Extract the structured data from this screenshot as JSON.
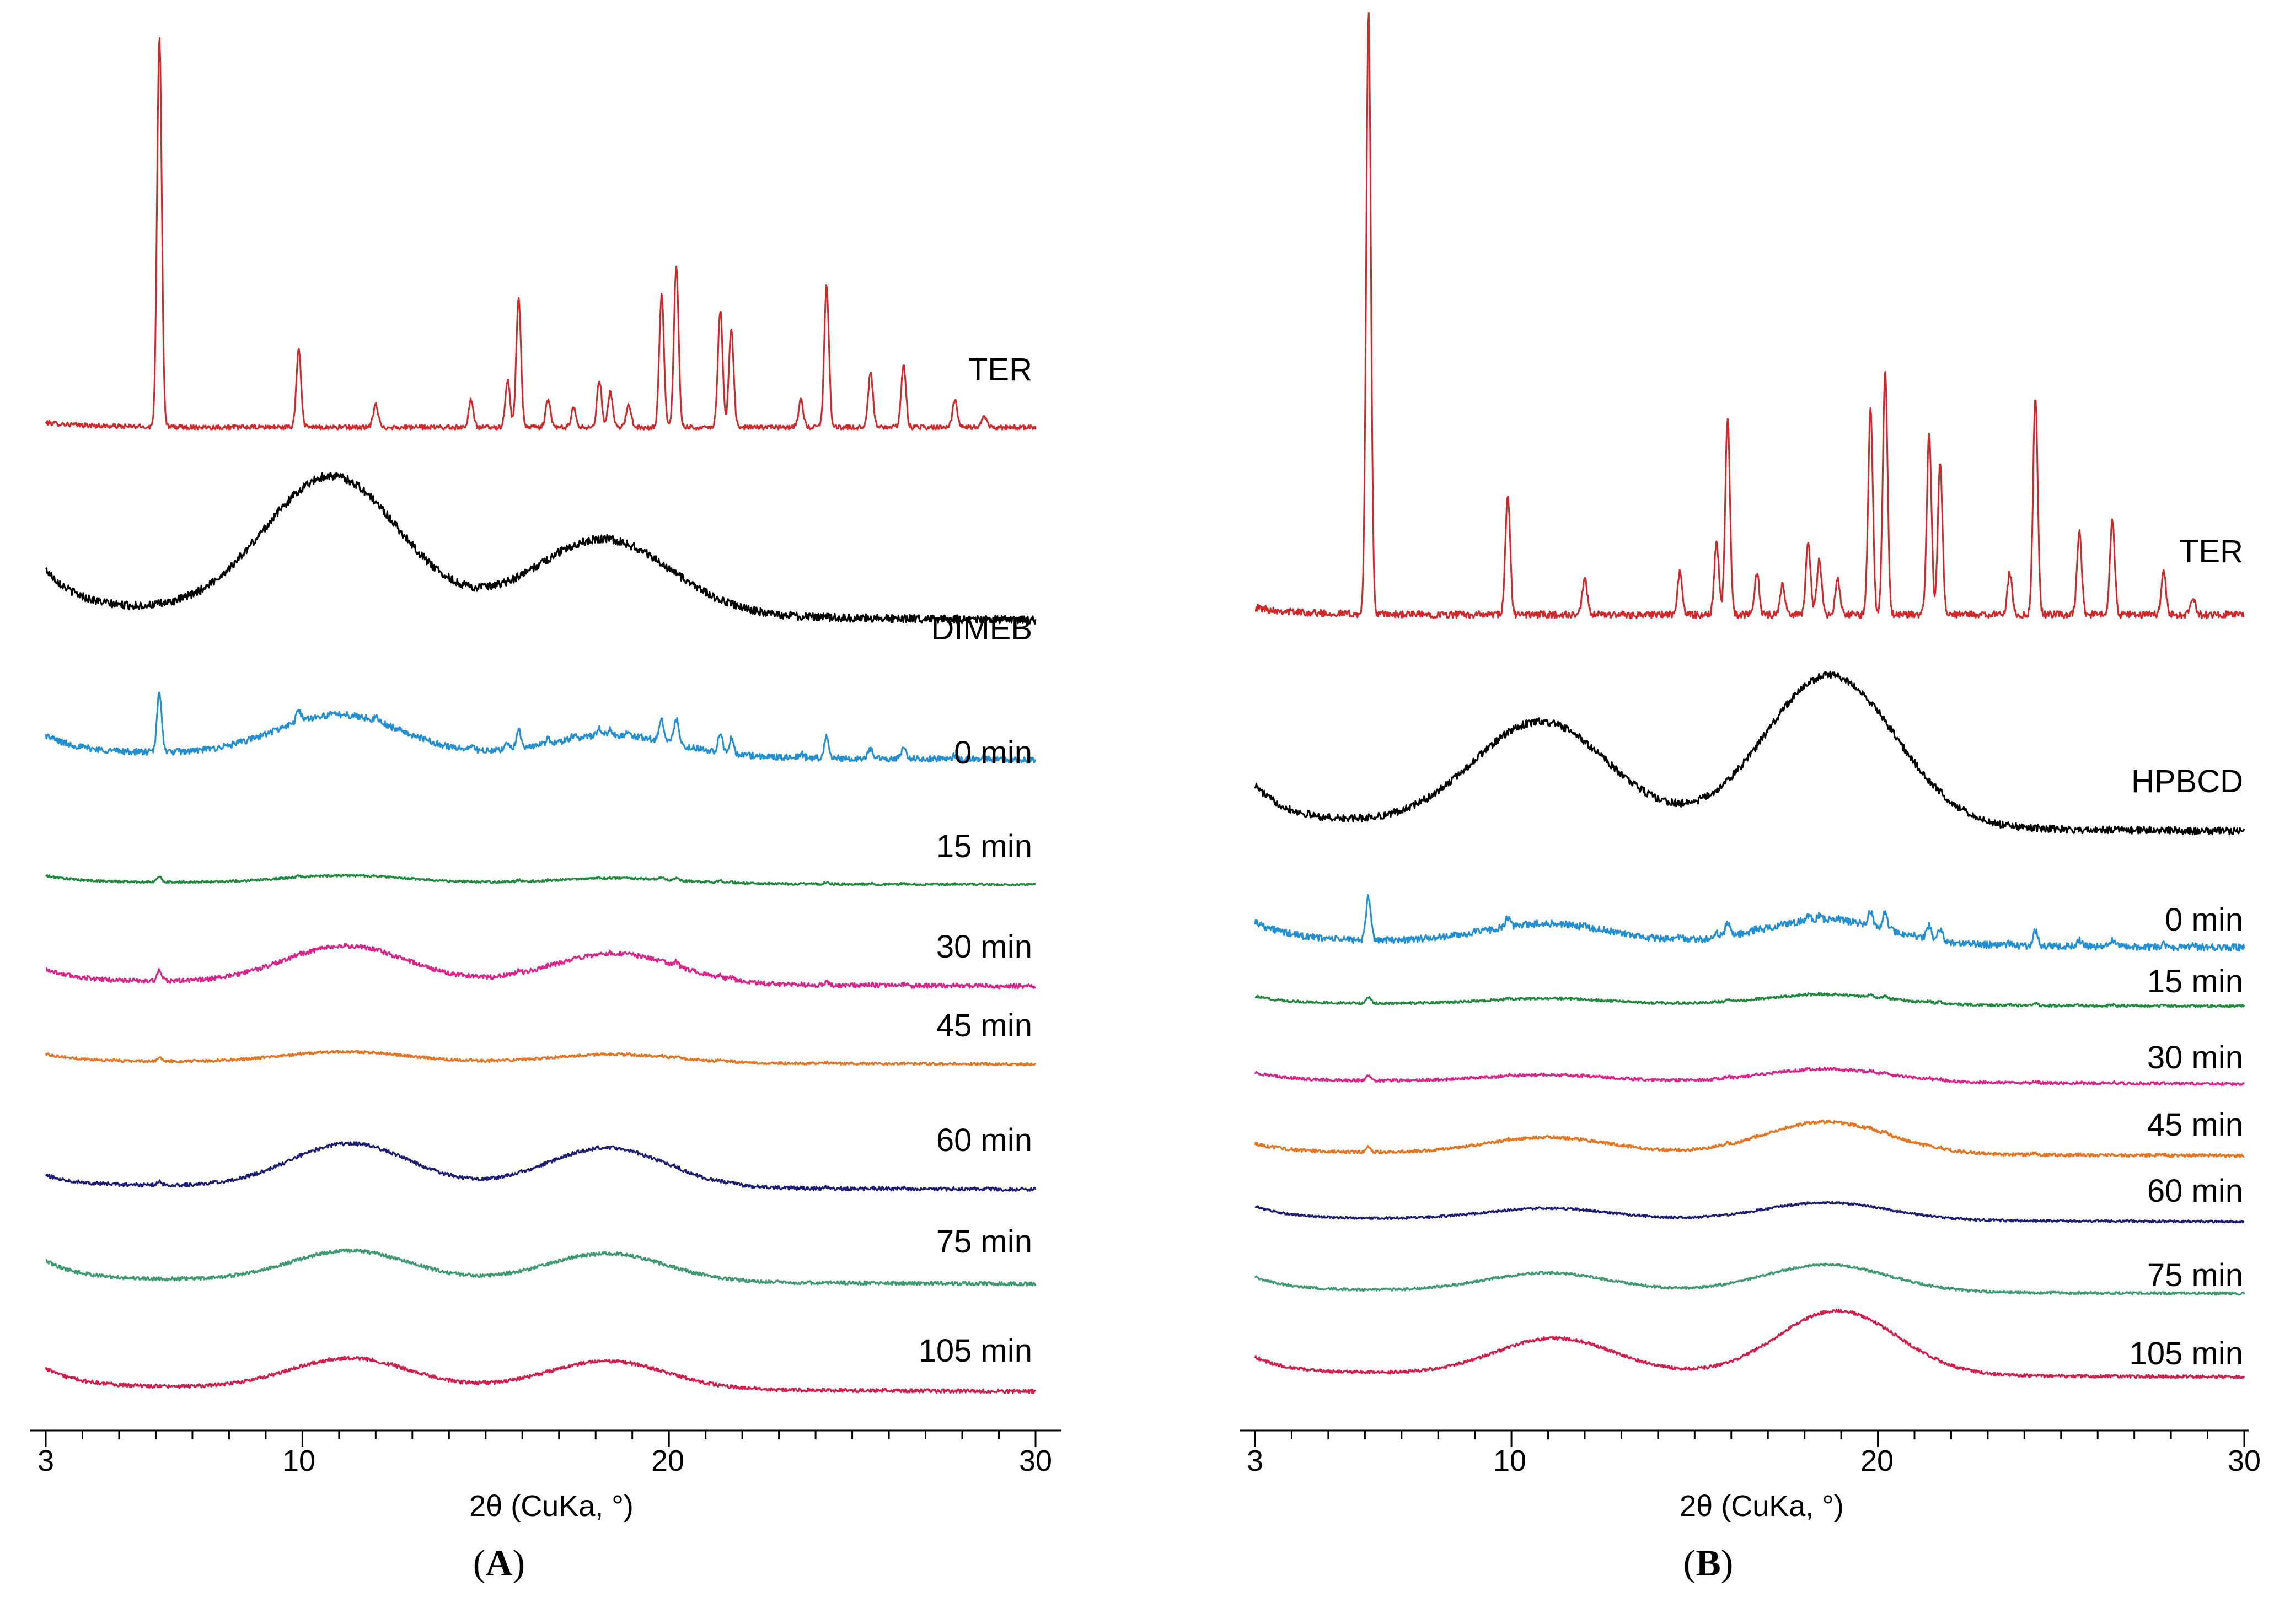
{
  "chart_data": [
    {
      "type": "line",
      "panel_label": "A",
      "xlabel": "2θ (CuKa, °)",
      "xlim": [
        3,
        30
      ],
      "xticks": [
        3,
        10,
        20,
        30
      ],
      "ylabel": "",
      "grid": false,
      "series": [
        {
          "name": "TER",
          "color": "#d62728",
          "kind": "crystalline"
        },
        {
          "name": "DIMEB",
          "color": "#000000",
          "kind": "amorphous",
          "humps": [
            {
              "center": 10.8,
              "height": 0.75,
              "width": 2.6
            },
            {
              "center": 18.2,
              "height": 0.42,
              "width": 2.6
            }
          ]
        },
        {
          "name": "0 min",
          "color": "#1f8fd6",
          "kind": "mixture",
          "crystal_fraction": 0.42,
          "humps": [
            {
              "center": 11.0,
              "height": 0.28,
              "width": 2.4
            },
            {
              "center": 18.5,
              "height": 0.15,
              "width": 2.4
            }
          ]
        },
        {
          "name": "15 min",
          "color": "#1a8c3a",
          "kind": "mixture",
          "crystal_fraction": 0.1,
          "humps": [
            {
              "center": 11.2,
              "height": 0.14,
              "width": 2.4
            },
            {
              "center": 18.6,
              "height": 0.1,
              "width": 2.4
            }
          ]
        },
        {
          "name": "30 min",
          "color": "#e0218a",
          "kind": "mixture",
          "crystal_fraction": 0.1,
          "humps": [
            {
              "center": 11.2,
              "height": 0.36,
              "width": 2.4
            },
            {
              "center": 18.5,
              "height": 0.3,
              "width": 2.4
            }
          ]
        },
        {
          "name": "45 min",
          "color": "#e8731a",
          "kind": "mixture",
          "crystal_fraction": 0.05,
          "humps": [
            {
              "center": 11.2,
              "height": 0.17,
              "width": 2.4
            },
            {
              "center": 18.5,
              "height": 0.14,
              "width": 2.4
            }
          ]
        },
        {
          "name": "60 min",
          "color": "#1c1c7a",
          "kind": "mixture",
          "crystal_fraction": 0.04,
          "humps": [
            {
              "center": 11.3,
              "height": 0.52,
              "width": 2.3
            },
            {
              "center": 18.3,
              "height": 0.48,
              "width": 2.3
            }
          ]
        },
        {
          "name": "75 min",
          "color": "#3a9a70",
          "kind": "amorphous",
          "humps": [
            {
              "center": 11.3,
              "height": 0.36,
              "width": 2.3
            },
            {
              "center": 18.3,
              "height": 0.34,
              "width": 2.3
            }
          ]
        },
        {
          "name": "105 min",
          "color": "#d81b4a",
          "kind": "amorphous",
          "humps": [
            {
              "center": 11.3,
              "height": 0.36,
              "width": 2.3
            },
            {
              "center": 18.3,
              "height": 0.34,
              "width": 2.3
            }
          ]
        }
      ]
    },
    {
      "type": "line",
      "panel_label": "B",
      "xlabel": "2θ (CuKa, °)",
      "xlim": [
        3,
        30
      ],
      "xticks": [
        3,
        10,
        20,
        30
      ],
      "ylabel": "",
      "grid": false,
      "series": [
        {
          "name": "TER",
          "color": "#d62728",
          "kind": "crystalline"
        },
        {
          "name": "HPBCD",
          "color": "#000000",
          "kind": "amorphous",
          "humps": [
            {
              "center": 10.8,
              "height": 0.62,
              "width": 2.6
            },
            {
              "center": 18.7,
              "height": 0.92,
              "width": 2.5
            }
          ]
        },
        {
          "name": "0 min",
          "color": "#1f8fd6",
          "kind": "mixture",
          "crystal_fraction": 0.28,
          "humps": [
            {
              "center": 11.0,
              "height": 0.12,
              "width": 2.4
            },
            {
              "center": 18.6,
              "height": 0.16,
              "width": 2.4
            }
          ]
        },
        {
          "name": "15 min",
          "color": "#1a8c3a",
          "kind": "mixture",
          "crystal_fraction": 0.1,
          "humps": [
            {
              "center": 11.0,
              "height": 0.1,
              "width": 2.4
            },
            {
              "center": 18.6,
              "height": 0.18,
              "width": 2.4
            }
          ]
        },
        {
          "name": "30 min",
          "color": "#e0218a",
          "kind": "mixture",
          "crystal_fraction": 0.08,
          "humps": [
            {
              "center": 11.0,
              "height": 0.1,
              "width": 2.4
            },
            {
              "center": 18.6,
              "height": 0.2,
              "width": 2.4
            }
          ]
        },
        {
          "name": "45 min",
          "color": "#e8731a",
          "kind": "mixture",
          "crystal_fraction": 0.07,
          "humps": [
            {
              "center": 11.0,
              "height": 0.22,
              "width": 2.4
            },
            {
              "center": 18.6,
              "height": 0.45,
              "width": 2.4
            }
          ]
        },
        {
          "name": "60 min",
          "color": "#1c1c7a",
          "kind": "amorphous",
          "humps": [
            {
              "center": 11.0,
              "height": 0.2,
              "width": 2.4
            },
            {
              "center": 18.6,
              "height": 0.32,
              "width": 2.4
            }
          ]
        },
        {
          "name": "75 min",
          "color": "#3a9a70",
          "kind": "amorphous",
          "humps": [
            {
              "center": 11.0,
              "height": 0.3,
              "width": 2.4
            },
            {
              "center": 18.6,
              "height": 0.45,
              "width": 2.4
            }
          ]
        },
        {
          "name": "105 min",
          "color": "#d81b4a",
          "kind": "amorphous",
          "humps": [
            {
              "center": 11.2,
              "height": 0.5,
              "width": 2.3
            },
            {
              "center": 18.9,
              "height": 0.9,
              "width": 2.3
            }
          ]
        }
      ]
    }
  ],
  "ter_peaks": [
    {
      "pos": 6.1,
      "height": 1.0
    },
    {
      "pos": 9.9,
      "height": 0.2
    },
    {
      "pos": 12.0,
      "height": 0.06
    },
    {
      "pos": 14.6,
      "height": 0.07
    },
    {
      "pos": 15.6,
      "height": 0.12
    },
    {
      "pos": 15.9,
      "height": 0.33
    },
    {
      "pos": 16.7,
      "height": 0.07
    },
    {
      "pos": 17.4,
      "height": 0.05
    },
    {
      "pos": 18.1,
      "height": 0.12
    },
    {
      "pos": 18.4,
      "height": 0.09
    },
    {
      "pos": 18.9,
      "height": 0.06
    },
    {
      "pos": 19.8,
      "height": 0.34
    },
    {
      "pos": 20.2,
      "height": 0.41
    },
    {
      "pos": 21.4,
      "height": 0.3
    },
    {
      "pos": 21.7,
      "height": 0.25
    },
    {
      "pos": 23.6,
      "height": 0.07
    },
    {
      "pos": 24.3,
      "height": 0.36
    },
    {
      "pos": 25.5,
      "height": 0.14
    },
    {
      "pos": 26.4,
      "height": 0.16
    },
    {
      "pos": 27.8,
      "height": 0.07
    },
    {
      "pos": 28.6,
      "height": 0.03
    }
  ]
}
